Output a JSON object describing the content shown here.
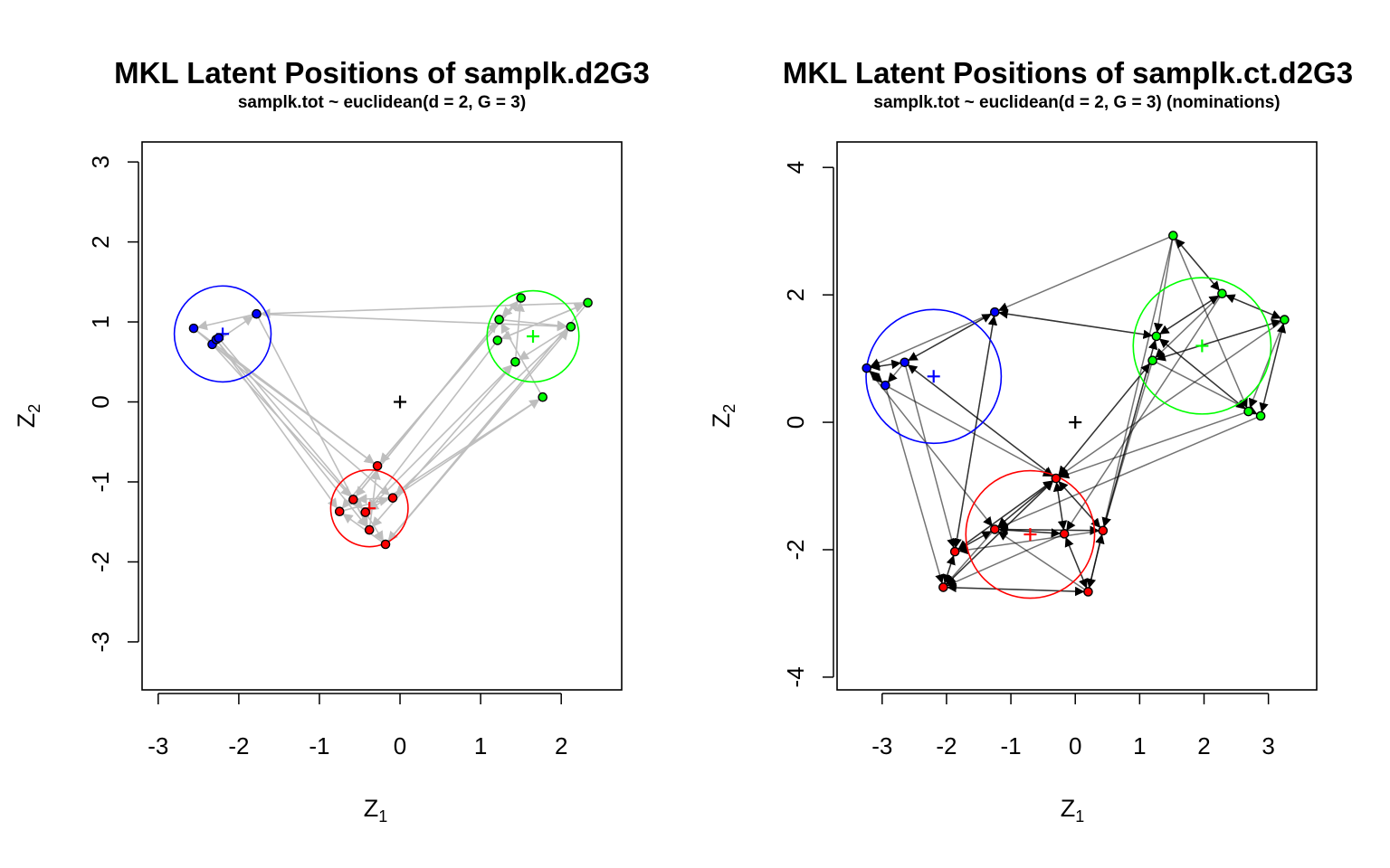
{
  "chart_data": [
    {
      "type": "scatter",
      "title": "MKL Latent Positions of samplk.d2G3",
      "subtitle": "samplk.tot ~ euclidean(d = 2, G = 3)",
      "xlabel": "Z",
      "xlabel_sub": "1",
      "ylabel": "Z",
      "ylabel_sub": "2",
      "xlim": [
        -3.2,
        2.75
      ],
      "ylim": [
        -3.6,
        3.25
      ],
      "xticks": [
        -3,
        -2,
        -1,
        0,
        1,
        2
      ],
      "yticks": [
        -3,
        -2,
        -1,
        0,
        1,
        2,
        3
      ],
      "edge_color": "#bebebe",
      "center_marker": {
        "x": 0,
        "y": 0,
        "color": "#000000"
      },
      "clusters": [
        {
          "color": "#0000ff",
          "center": {
            "x": -2.2,
            "y": 0.85
          },
          "radius": 0.6
        },
        {
          "color": "#00ff00",
          "center": {
            "x": 1.65,
            "y": 0.82
          },
          "radius": 0.57
        },
        {
          "color": "#ff0000",
          "center": {
            "x": -0.38,
            "y": -1.33
          },
          "radius": 0.48
        }
      ],
      "points": [
        {
          "x": -2.56,
          "y": 0.92,
          "group": 0
        },
        {
          "x": -2.33,
          "y": 0.72,
          "group": 0
        },
        {
          "x": -2.28,
          "y": 0.78,
          "group": 0
        },
        {
          "x": -2.25,
          "y": 0.8,
          "group": 0
        },
        {
          "x": -1.78,
          "y": 1.1,
          "group": 0
        },
        {
          "x": 1.5,
          "y": 1.3,
          "group": 1
        },
        {
          "x": 1.23,
          "y": 1.03,
          "group": 1
        },
        {
          "x": 1.21,
          "y": 0.77,
          "group": 1
        },
        {
          "x": 1.43,
          "y": 0.5,
          "group": 1
        },
        {
          "x": 1.77,
          "y": 0.06,
          "group": 1
        },
        {
          "x": 2.12,
          "y": 0.94,
          "group": 1
        },
        {
          "x": 2.33,
          "y": 1.24,
          "group": 1
        },
        {
          "x": -0.28,
          "y": -0.8,
          "group": 2
        },
        {
          "x": -0.58,
          "y": -1.22,
          "group": 2
        },
        {
          "x": -0.75,
          "y": -1.37,
          "group": 2
        },
        {
          "x": -0.43,
          "y": -1.38,
          "group": 2
        },
        {
          "x": -0.38,
          "y": -1.6,
          "group": 2
        },
        {
          "x": -0.09,
          "y": -1.2,
          "group": 2
        },
        {
          "x": -0.18,
          "y": -1.78,
          "group": 2
        }
      ],
      "edges": [
        [
          4,
          0
        ],
        [
          1,
          4
        ],
        [
          0,
          12
        ],
        [
          1,
          13
        ],
        [
          2,
          14
        ],
        [
          3,
          15
        ],
        [
          4,
          16
        ],
        [
          0,
          17
        ],
        [
          1,
          12
        ],
        [
          2,
          16
        ],
        [
          4,
          10
        ],
        [
          11,
          4
        ],
        [
          5,
          12
        ],
        [
          6,
          13
        ],
        [
          7,
          15
        ],
        [
          8,
          16
        ],
        [
          9,
          15
        ],
        [
          10,
          17
        ],
        [
          11,
          18
        ],
        [
          12,
          5
        ],
        [
          13,
          6
        ],
        [
          15,
          8
        ],
        [
          17,
          9
        ],
        [
          18,
          10
        ],
        [
          5,
          6
        ],
        [
          6,
          10
        ],
        [
          7,
          11
        ],
        [
          8,
          5
        ],
        [
          10,
          8
        ],
        [
          11,
          7
        ],
        [
          9,
          6
        ],
        [
          12,
          14
        ],
        [
          13,
          16
        ],
        [
          14,
          17
        ],
        [
          15,
          18
        ],
        [
          16,
          12
        ],
        [
          17,
          13
        ],
        [
          18,
          14
        ]
      ]
    },
    {
      "type": "scatter",
      "title": "MKL Latent Positions of samplk.ct.d2G3",
      "subtitle": "samplk.tot ~ euclidean(d = 2, G = 3)   (nominations)",
      "xlabel": "Z",
      "xlabel_sub": "1",
      "ylabel": "Z",
      "ylabel_sub": "2",
      "xlim": [
        -3.7,
        3.75
      ],
      "ylim": [
        -4.2,
        4.4
      ],
      "xticks": [
        -3,
        -2,
        -1,
        0,
        1,
        2,
        3
      ],
      "yticks": [
        -4,
        -2,
        0,
        2,
        4
      ],
      "edge_color": "#000000",
      "center_marker": {
        "x": 0,
        "y": 0,
        "color": "#000000"
      },
      "clusters": [
        {
          "color": "#0000ff",
          "center": {
            "x": -2.2,
            "y": 0.72
          },
          "radius": 1.05
        },
        {
          "color": "#00ff00",
          "center": {
            "x": 1.97,
            "y": 1.2
          },
          "radius": 1.07
        },
        {
          "color": "#ff0000",
          "center": {
            "x": -0.7,
            "y": -1.76
          },
          "radius": 1.0
        }
      ],
      "points": [
        {
          "x": -3.24,
          "y": 0.85,
          "group": 0
        },
        {
          "x": -2.95,
          "y": 0.58,
          "group": 0
        },
        {
          "x": -2.65,
          "y": 0.94,
          "group": 0
        },
        {
          "x": -1.25,
          "y": 1.73,
          "group": 0
        },
        {
          "x": 1.52,
          "y": 2.93,
          "group": 1
        },
        {
          "x": 2.28,
          "y": 2.02,
          "group": 1
        },
        {
          "x": 3.25,
          "y": 1.61,
          "group": 1
        },
        {
          "x": 1.26,
          "y": 1.35,
          "group": 1
        },
        {
          "x": 1.2,
          "y": 0.97,
          "group": 1
        },
        {
          "x": 2.69,
          "y": 0.17,
          "group": 1
        },
        {
          "x": 2.88,
          "y": 0.1,
          "group": 1
        },
        {
          "x": -0.3,
          "y": -0.88,
          "group": 2
        },
        {
          "x": -1.25,
          "y": -1.68,
          "group": 2
        },
        {
          "x": -0.17,
          "y": -1.75,
          "group": 2
        },
        {
          "x": 0.43,
          "y": -1.7,
          "group": 2
        },
        {
          "x": -1.87,
          "y": -2.03,
          "group": 2
        },
        {
          "x": -2.05,
          "y": -2.59,
          "group": 2
        },
        {
          "x": 0.2,
          "y": -2.66,
          "group": 2
        }
      ],
      "edges": [
        [
          0,
          2
        ],
        [
          2,
          0
        ],
        [
          1,
          0
        ],
        [
          0,
          1
        ],
        [
          2,
          1
        ],
        [
          3,
          2
        ],
        [
          2,
          3
        ],
        [
          3,
          0
        ],
        [
          4,
          3
        ],
        [
          3,
          7
        ],
        [
          7,
          3
        ],
        [
          3,
          15
        ],
        [
          15,
          3
        ],
        [
          2,
          11
        ],
        [
          11,
          2
        ],
        [
          1,
          16
        ],
        [
          0,
          12
        ],
        [
          1,
          11
        ],
        [
          2,
          15
        ],
        [
          4,
          5
        ],
        [
          5,
          4
        ],
        [
          4,
          7
        ],
        [
          4,
          9
        ],
        [
          5,
          6
        ],
        [
          6,
          5
        ],
        [
          5,
          7
        ],
        [
          5,
          8
        ],
        [
          7,
          5
        ],
        [
          6,
          10
        ],
        [
          10,
          6
        ],
        [
          6,
          9
        ],
        [
          7,
          9
        ],
        [
          8,
          10
        ],
        [
          9,
          7
        ],
        [
          8,
          6
        ],
        [
          6,
          8
        ],
        [
          7,
          14
        ],
        [
          14,
          7
        ],
        [
          8,
          11
        ],
        [
          11,
          8
        ],
        [
          9,
          11
        ],
        [
          10,
          12
        ],
        [
          6,
          11
        ],
        [
          5,
          13
        ],
        [
          4,
          17
        ],
        [
          8,
          14
        ],
        [
          11,
          12
        ],
        [
          12,
          11
        ],
        [
          11,
          13
        ],
        [
          13,
          11
        ],
        [
          11,
          14
        ],
        [
          14,
          11
        ],
        [
          12,
          13
        ],
        [
          13,
          12
        ],
        [
          12,
          14
        ],
        [
          14,
          12
        ],
        [
          12,
          15
        ],
        [
          15,
          12
        ],
        [
          15,
          16
        ],
        [
          16,
          15
        ],
        [
          16,
          17
        ],
        [
          17,
          16
        ],
        [
          13,
          17
        ],
        [
          17,
          13
        ],
        [
          14,
          17
        ],
        [
          17,
          14
        ],
        [
          11,
          15
        ],
        [
          15,
          11
        ],
        [
          11,
          16
        ],
        [
          16,
          11
        ],
        [
          12,
          16
        ],
        [
          13,
          16
        ],
        [
          17,
          12
        ],
        [
          14,
          15
        ]
      ]
    }
  ]
}
